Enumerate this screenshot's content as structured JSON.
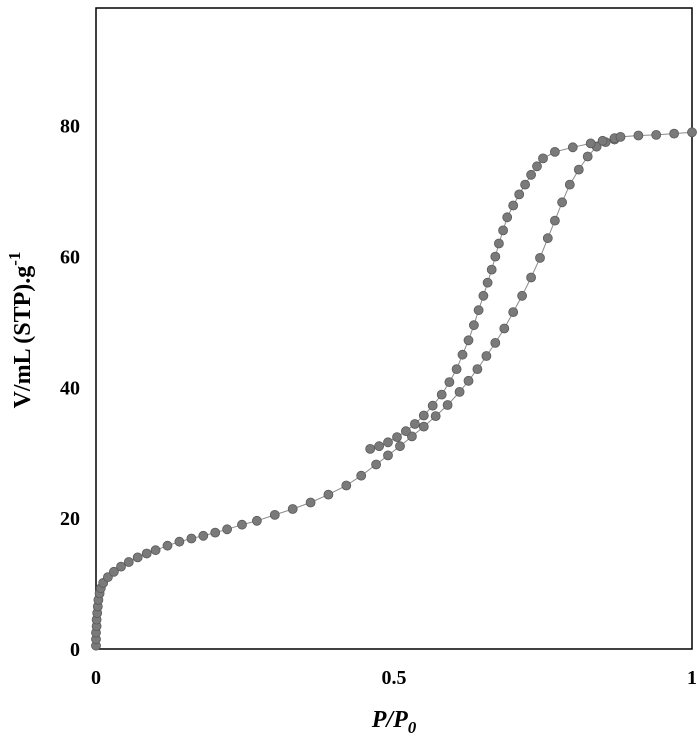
{
  "chart_data": {
    "type": "scatter",
    "title": "",
    "xlabel": "P/P",
    "xlabel_sub": "0",
    "ylabel": "V/mL (STP).g",
    "ylabel_sup": "-1",
    "xlim": [
      0,
      1
    ],
    "ylim": [
      0,
      98
    ],
    "xticks": [
      {
        "value": 0,
        "label": "0"
      },
      {
        "value": 0.5,
        "label": "0.5"
      },
      {
        "value": 1,
        "label": "1"
      }
    ],
    "yticks": [
      {
        "value": 0,
        "label": "0"
      },
      {
        "value": 20,
        "label": "20"
      },
      {
        "value": 40,
        "label": "40"
      },
      {
        "value": 60,
        "label": "60"
      },
      {
        "value": 80,
        "label": "80"
      }
    ],
    "grid": false,
    "legend": "none",
    "colors": {
      "marker": "#7a7a7a",
      "marker_edge": "#5a5a5a",
      "line": "#8a8a8a",
      "frame": "#000000"
    },
    "series": [
      {
        "points": [
          [
            0.0,
            0.5
          ],
          [
            0.0,
            1.5
          ],
          [
            0.0,
            2.5
          ],
          [
            0.001,
            3.5
          ],
          [
            0.001,
            4.5
          ],
          [
            0.002,
            5.5
          ],
          [
            0.003,
            6.5
          ],
          [
            0.004,
            7.5
          ],
          [
            0.006,
            8.5
          ],
          [
            0.008,
            9.3
          ],
          [
            0.012,
            10.1
          ],
          [
            0.02,
            11.0
          ],
          [
            0.03,
            11.8
          ],
          [
            0.042,
            12.6
          ],
          [
            0.055,
            13.3
          ],
          [
            0.07,
            14.0
          ],
          [
            0.085,
            14.6
          ],
          [
            0.1,
            15.1
          ],
          [
            0.12,
            15.8
          ],
          [
            0.14,
            16.4
          ],
          [
            0.16,
            16.9
          ],
          [
            0.18,
            17.3
          ],
          [
            0.2,
            17.8
          ],
          [
            0.22,
            18.3
          ],
          [
            0.245,
            19.0
          ],
          [
            0.27,
            19.6
          ],
          [
            0.3,
            20.5
          ],
          [
            0.33,
            21.4
          ],
          [
            0.36,
            22.4
          ],
          [
            0.39,
            23.6
          ],
          [
            0.42,
            25.0
          ],
          [
            0.445,
            26.5
          ],
          [
            0.47,
            28.2
          ],
          [
            0.49,
            29.6
          ],
          [
            0.51,
            31.0
          ],
          [
            0.53,
            32.5
          ],
          [
            0.55,
            34.0
          ],
          [
            0.57,
            35.6
          ],
          [
            0.59,
            37.3
          ],
          [
            0.61,
            39.3
          ],
          [
            0.625,
            41.0
          ],
          [
            0.64,
            42.8
          ],
          [
            0.655,
            44.8
          ],
          [
            0.67,
            46.8
          ],
          [
            0.685,
            49.0
          ],
          [
            0.7,
            51.5
          ],
          [
            0.715,
            54.0
          ],
          [
            0.73,
            56.8
          ],
          [
            0.745,
            59.8
          ],
          [
            0.758,
            62.8
          ],
          [
            0.77,
            65.5
          ],
          [
            0.782,
            68.3
          ],
          [
            0.795,
            71.0
          ],
          [
            0.81,
            73.3
          ],
          [
            0.825,
            75.3
          ],
          [
            0.84,
            76.8
          ],
          [
            0.855,
            77.5
          ],
          [
            0.87,
            77.9
          ]
        ]
      },
      {
        "points": [
          [
            0.87,
            78.1
          ],
          [
            0.85,
            77.7
          ],
          [
            0.83,
            77.3
          ],
          [
            0.8,
            76.7
          ],
          [
            0.77,
            76.0
          ],
          [
            0.75,
            75.0
          ],
          [
            0.74,
            73.8
          ],
          [
            0.73,
            72.5
          ],
          [
            0.72,
            71.0
          ],
          [
            0.71,
            69.5
          ],
          [
            0.7,
            67.8
          ],
          [
            0.69,
            66.0
          ],
          [
            0.683,
            64.0
          ],
          [
            0.676,
            62.0
          ],
          [
            0.67,
            60.0
          ],
          [
            0.664,
            58.0
          ],
          [
            0.657,
            56.0
          ],
          [
            0.65,
            54.0
          ],
          [
            0.642,
            51.8
          ],
          [
            0.634,
            49.5
          ],
          [
            0.625,
            47.2
          ],
          [
            0.615,
            45.0
          ],
          [
            0.605,
            42.8
          ],
          [
            0.593,
            40.8
          ],
          [
            0.58,
            38.9
          ],
          [
            0.565,
            37.2
          ],
          [
            0.55,
            35.7
          ],
          [
            0.535,
            34.4
          ],
          [
            0.52,
            33.3
          ],
          [
            0.505,
            32.4
          ],
          [
            0.49,
            31.6
          ],
          [
            0.475,
            31.0
          ],
          [
            0.46,
            30.6
          ]
        ]
      },
      {
        "points": [
          [
            0.88,
            78.3
          ],
          [
            0.91,
            78.5
          ],
          [
            0.94,
            78.6
          ],
          [
            0.97,
            78.8
          ],
          [
            1.0,
            79.0
          ]
        ]
      }
    ]
  }
}
